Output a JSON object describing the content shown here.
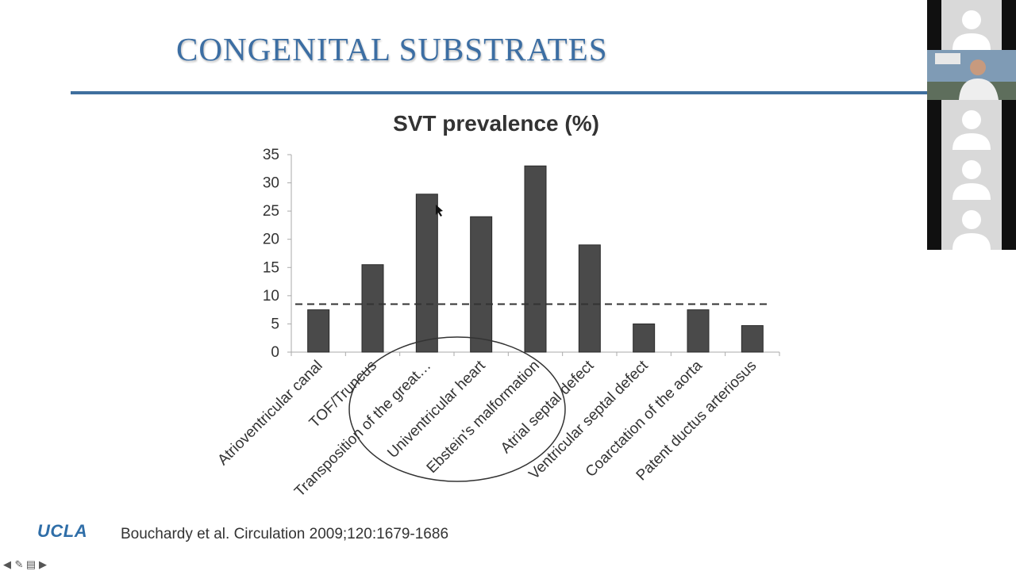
{
  "slide": {
    "title": "CONGENITAL SUBSTRATES",
    "citation": "Bouchardy et al. Circulation 2009;120:1679-1686",
    "logo_text": "UCLA",
    "colors": {
      "title": "#3c6ea3",
      "rule": "#3f6f9e",
      "bar": "#4a4a4a",
      "logo": "#2f6ea8"
    }
  },
  "chart_data": {
    "type": "bar",
    "title": "SVT prevalence (%)",
    "categories": [
      "Atrioventricular canal",
      "TOF/Truncus",
      "Transposition of the great…",
      "Univentricular heart",
      "Ebstein's malformation",
      "Atrial septal defect",
      "Ventricular septal defect",
      "Coarctation of the aorta",
      "Patent ductus arteriosus"
    ],
    "values": [
      7.5,
      15.5,
      28,
      24,
      33,
      19,
      5,
      7.5,
      4.7
    ],
    "reference_line": 8.5,
    "ylim": [
      0,
      35
    ],
    "yticks": [
      0,
      5,
      10,
      15,
      20,
      25,
      30,
      35
    ],
    "grid": false,
    "legend": "none",
    "annotation": "hand-drawn ellipse circling Transposition of the great…, Univentricular heart and Ebstein's malformation"
  },
  "sidebar": {
    "participants": [
      {
        "kind": "avatar-icon"
      },
      {
        "kind": "video"
      },
      {
        "kind": "avatar-icon"
      },
      {
        "kind": "avatar-icon"
      },
      {
        "kind": "avatar-icon"
      }
    ]
  },
  "nav": {
    "icons": [
      "prev-arrow-icon",
      "pen-icon",
      "slides-menu-icon",
      "next-arrow-icon"
    ]
  }
}
